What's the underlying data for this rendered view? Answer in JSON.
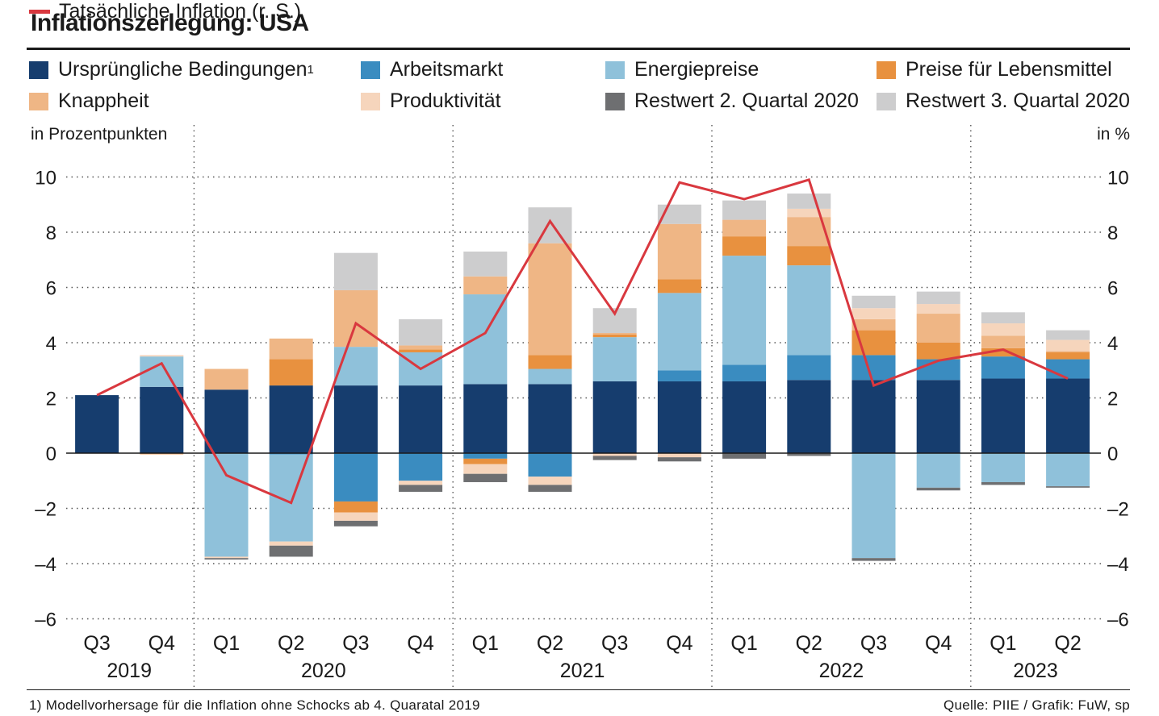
{
  "title": "Inflationszerlegung: USA",
  "legend": [
    {
      "label": "Ursprüngliche Bedingungen",
      "sup": "1",
      "color": "#163d6e",
      "kind": "box"
    },
    {
      "label": "Arbeitsmarkt",
      "color": "#3a8cc0",
      "kind": "box"
    },
    {
      "label": "Energiepreise",
      "color": "#8fc1da",
      "kind": "box"
    },
    {
      "label": "Preise für Lebensmittel",
      "color": "#e8913f",
      "kind": "box"
    },
    {
      "label": "Knappheit",
      "color": "#efb685",
      "kind": "box"
    },
    {
      "label": "Produktivität",
      "color": "#f6d5bc",
      "kind": "box"
    },
    {
      "label": "Restwert 2. Quartal 2020",
      "color": "#6e6f71",
      "kind": "box"
    },
    {
      "label": "Restwert 3. Quartal 2020",
      "color": "#cdcdce",
      "kind": "box"
    },
    {
      "label": "Tatsächliche Inflation (r. S.)",
      "color": "#d9383f",
      "kind": "line"
    }
  ],
  "units": {
    "left": "in Prozentpunkten",
    "right": "in %"
  },
  "footnote": "1) Modellvorhersage für die Inflation ohne Schocks ab 4. Quaratal 2019",
  "source": "Quelle: PIIE / Grafik: FuW, sp",
  "chart_data": {
    "type": "bar",
    "stacked": true,
    "title": "Inflationszerlegung: USA",
    "ylabel_left": "in Prozentpunkten",
    "ylabel_right": "in %",
    "ylim": [
      -6,
      10
    ],
    "yticks": [
      10,
      8,
      6,
      4,
      2,
      0,
      -2,
      -4,
      -6
    ],
    "ytick_labels": [
      "10",
      "8",
      "6",
      "4",
      "2",
      "0",
      "–2",
      "–4",
      "–6"
    ],
    "grid": true,
    "categories": [
      "Q3",
      "Q4",
      "Q1",
      "Q2",
      "Q3",
      "Q4",
      "Q1",
      "Q2",
      "Q3",
      "Q4",
      "Q1",
      "Q2",
      "Q3",
      "Q4",
      "Q1",
      "Q2"
    ],
    "years": [
      {
        "label": "2019",
        "from": 0,
        "to": 1
      },
      {
        "label": "2020",
        "from": 2,
        "to": 5
      },
      {
        "label": "2021",
        "from": 6,
        "to": 9
      },
      {
        "label": "2022",
        "from": 10,
        "to": 13
      },
      {
        "label": "2023",
        "from": 14,
        "to": 15
      }
    ],
    "series": [
      {
        "name": "Ursprüngliche Bedingungen",
        "color": "#163d6e",
        "values": [
          2.1,
          2.4,
          2.3,
          2.45,
          2.45,
          2.45,
          2.5,
          2.5,
          2.6,
          2.6,
          2.6,
          2.65,
          2.65,
          2.65,
          2.7,
          2.7
        ]
      },
      {
        "name": "Arbeitsmarkt",
        "color": "#3a8cc0",
        "values": [
          0,
          0,
          0,
          -0.05,
          -1.75,
          -1.0,
          -0.2,
          -0.85,
          0,
          0.4,
          0.6,
          0.9,
          0.9,
          0.75,
          0.8,
          0.7
        ]
      },
      {
        "name": "Energiepreise",
        "color": "#8fc1da",
        "values": [
          0,
          1.1,
          -3.75,
          -3.15,
          1.4,
          1.2,
          3.25,
          0.55,
          1.6,
          2.8,
          3.95,
          3.25,
          -3.8,
          -1.25,
          -1.05,
          -1.2
        ]
      },
      {
        "name": "Preise für Lebensmittel",
        "color": "#e8913f",
        "values": [
          0,
          0,
          0,
          0.95,
          -0.4,
          0.1,
          -0.2,
          0.5,
          0.1,
          0.5,
          0.7,
          0.7,
          0.9,
          0.6,
          0.3,
          0.25
        ]
      },
      {
        "name": "Knappheit",
        "color": "#efb685",
        "values": [
          0,
          -0.05,
          0.75,
          0.75,
          2.05,
          0.15,
          0.65,
          4.05,
          0.05,
          2.0,
          0.6,
          1.05,
          0.4,
          1.05,
          0.45,
          0.05
        ]
      },
      {
        "name": "Produktivität",
        "color": "#f6d5bc",
        "values": [
          0,
          0.05,
          -0.05,
          -0.15,
          -0.3,
          -0.15,
          -0.35,
          -0.3,
          -0.1,
          -0.15,
          0,
          0.3,
          0.4,
          0.35,
          0.45,
          0.4
        ]
      },
      {
        "name": "Restwert 2. Quartal 2020",
        "color": "#6e6f71",
        "values": [
          0,
          0,
          -0.05,
          -0.4,
          -0.2,
          -0.25,
          -0.3,
          -0.25,
          -0.15,
          -0.15,
          -0.2,
          -0.1,
          -0.1,
          -0.1,
          -0.1,
          -0.05
        ]
      },
      {
        "name": "Restwert 3. Quartal 2020",
        "color": "#cdcdce",
        "values": [
          0,
          0,
          0,
          0,
          1.35,
          0.95,
          0.9,
          1.3,
          0.9,
          0.7,
          0.7,
          0.55,
          0.45,
          0.45,
          0.4,
          0.35
        ]
      }
    ],
    "line": {
      "name": "Tatsächliche Inflation (r. S.)",
      "color": "#d9383f",
      "values": [
        2.1,
        3.25,
        -0.8,
        -1.8,
        4.7,
        3.05,
        4.35,
        8.4,
        5.05,
        9.8,
        9.2,
        9.9,
        2.45,
        3.35,
        3.75,
        2.7
      ]
    }
  }
}
